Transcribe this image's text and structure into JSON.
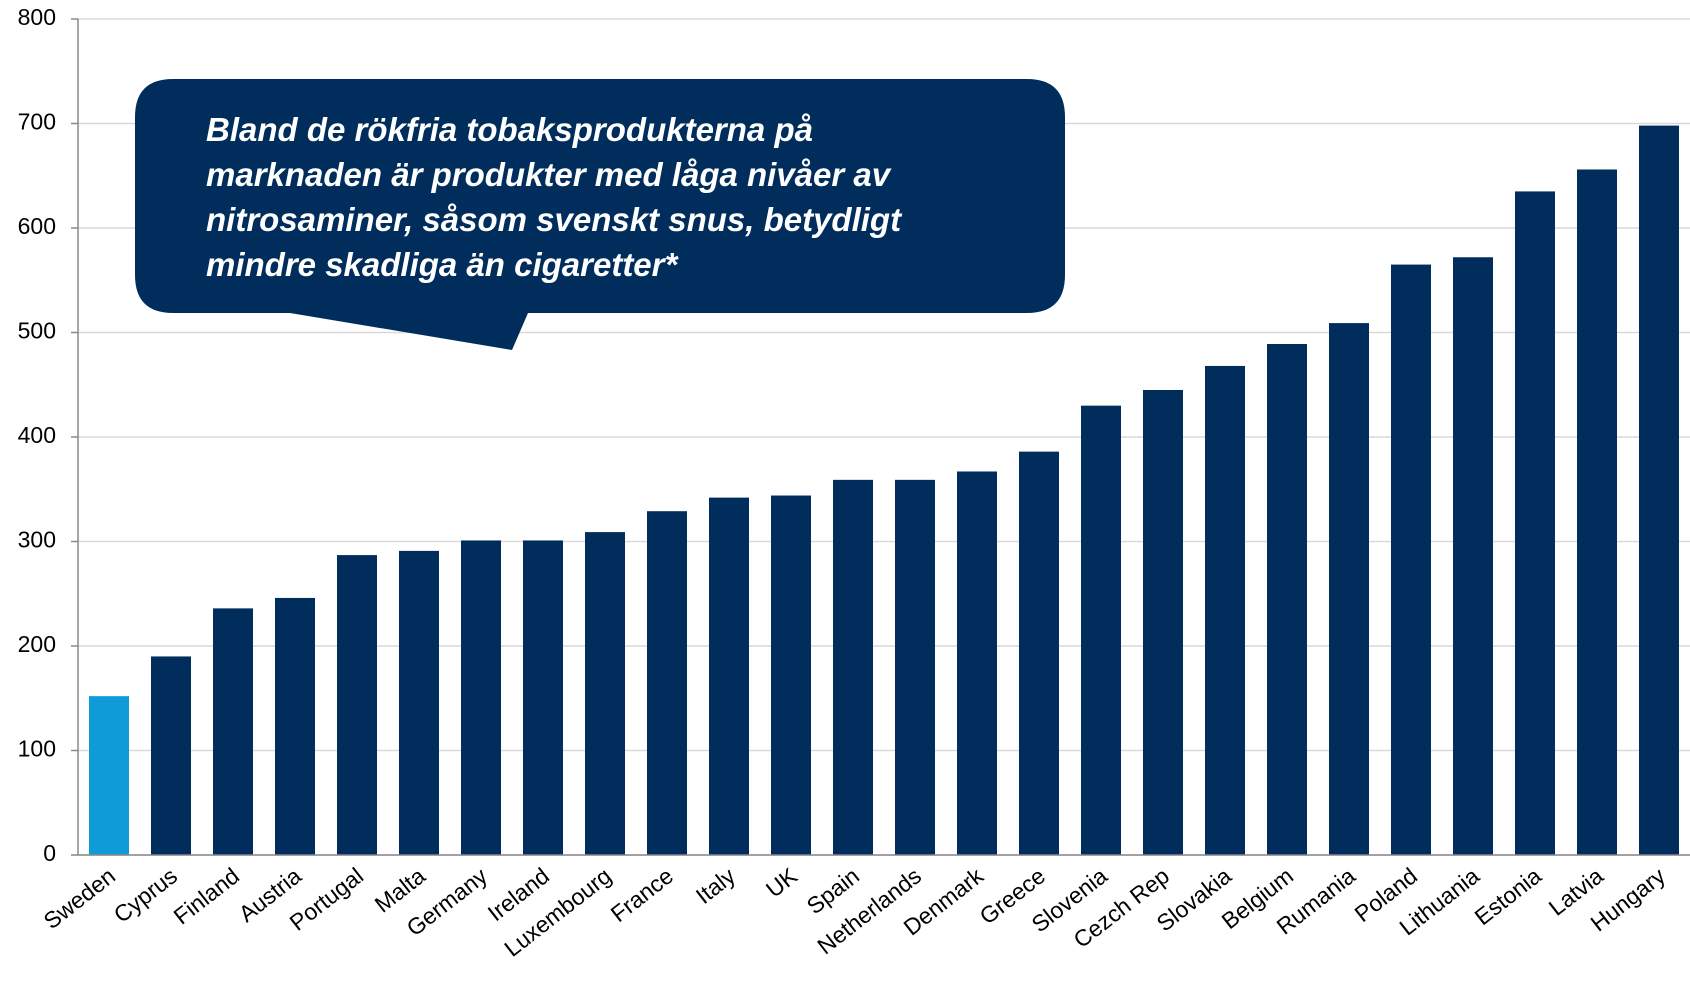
{
  "chart_data": {
    "type": "bar",
    "categories": [
      "Sweden",
      "Cyprus",
      "Finland",
      "Austria",
      "Portugal",
      "Malta",
      "Germany",
      "Ireland",
      "Luxembourg",
      "France",
      "Italy",
      "UK",
      "Spain",
      "Netherlands",
      "Denmark",
      "Greece",
      "Slovenia",
      "Cezch Rep",
      "Slovakia",
      "Belgium",
      "Rumania",
      "Poland",
      "Lithuania",
      "Estonia",
      "Latvia",
      "Hungary"
    ],
    "values": [
      152,
      190,
      236,
      246,
      287,
      291,
      301,
      301,
      309,
      329,
      342,
      344,
      359,
      359,
      367,
      386,
      430,
      445,
      468,
      489,
      509,
      565,
      572,
      635,
      656,
      698
    ],
    "colors": [
      "#0f9bd7",
      "#002d5c",
      "#002d5c",
      "#002d5c",
      "#002d5c",
      "#002d5c",
      "#002d5c",
      "#002d5c",
      "#002d5c",
      "#002d5c",
      "#002d5c",
      "#002d5c",
      "#002d5c",
      "#002d5c",
      "#002d5c",
      "#002d5c",
      "#002d5c",
      "#002d5c",
      "#002d5c",
      "#002d5c",
      "#002d5c",
      "#002d5c",
      "#002d5c",
      "#002d5c",
      "#002d5c",
      "#002d5c"
    ],
    "ylim": [
      0,
      800
    ],
    "yticks": [
      0,
      100,
      200,
      300,
      400,
      500,
      600,
      700,
      800
    ],
    "grid": true,
    "annotation": [
      "Bland de rökfria tobaksprodukterna på",
      "marknaden är produkter med låga nivåer av",
      "nitrosaminer, såsom svenskt snus, betydligt",
      "mindre skadliga än cigaretter*"
    ]
  }
}
